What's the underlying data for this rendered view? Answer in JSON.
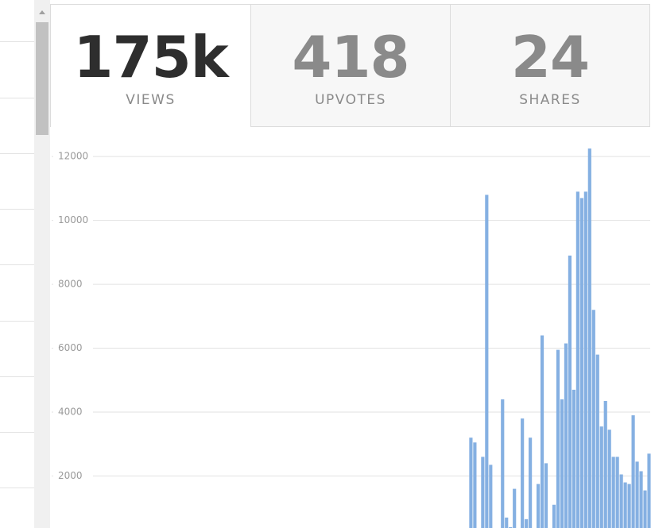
{
  "stats": [
    {
      "value": "175k",
      "label": "VIEWS"
    },
    {
      "value": 418,
      "label": "UPVOTES"
    },
    {
      "value": 24,
      "label": "SHARES"
    }
  ],
  "chart_data": {
    "type": "bar",
    "color": "#85b0e2",
    "grid": true,
    "ylim": [
      0,
      12500
    ],
    "yticks": [
      2000,
      4000,
      6000,
      8000,
      10000,
      12000
    ],
    "values": [
      3200,
      3050,
      0,
      2600,
      10800,
      2350,
      0,
      0,
      4400,
      700,
      400,
      1600,
      0,
      3800,
      650,
      3200,
      0,
      1750,
      6400,
      2400,
      0,
      1100,
      5950,
      4400,
      6150,
      8900,
      4700,
      10900,
      10700,
      10900,
      12250,
      7200,
      5800,
      3550,
      4350,
      3450,
      2600,
      2600,
      2050,
      1800,
      1750,
      3900,
      2450,
      2150,
      1550,
      2700
    ]
  }
}
